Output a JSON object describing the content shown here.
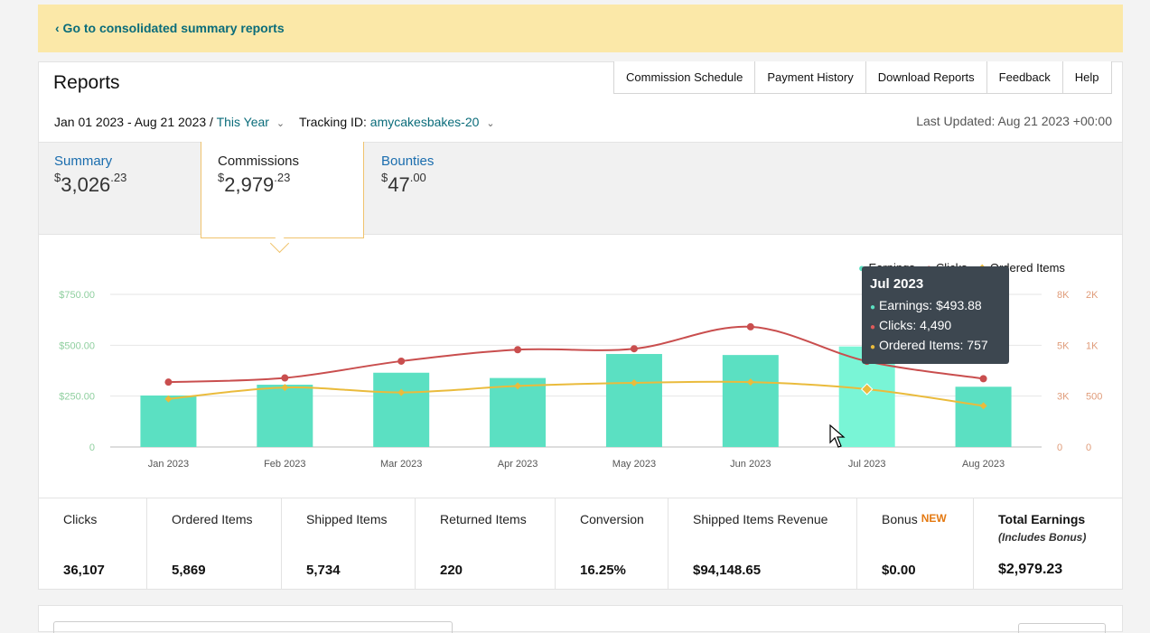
{
  "banner": {
    "link": "‹ Go to consolidated summary reports"
  },
  "header": {
    "title": "Reports",
    "tabs": [
      "Commission Schedule",
      "Payment History",
      "Download Reports",
      "Feedback",
      "Help"
    ],
    "date_range": "Jan 01 2023 - Aug 21 2023",
    "period": "This Year",
    "tracking_label": "Tracking ID:",
    "tracking_id": "amycakesbakes-20",
    "last_updated": "Last Updated: Aug 21 2023 +00:00"
  },
  "summary": [
    {
      "label": "Summary",
      "dollar": "$",
      "whole": "3,026",
      "cents": ".23"
    },
    {
      "label": "Commissions",
      "dollar": "$",
      "whole": "2,979",
      "cents": ".23"
    },
    {
      "label": "Bounties",
      "dollar": "$",
      "whole": "47",
      "cents": ".00"
    }
  ],
  "legend": {
    "earnings": "Earnings",
    "clicks": "Clicks",
    "ordered": "Ordered Items"
  },
  "tooltip": {
    "title": "Jul 2023",
    "earnings": "Earnings: $493.88",
    "clicks": "Clicks: 4,490",
    "ordered": "Ordered Items: 757"
  },
  "colors": {
    "earnings": "#5be0c2",
    "earnings_hover": "#79f5d6",
    "clicks": "#c94e4e",
    "ordered": "#eabb3c",
    "link": "#0a6c7a"
  },
  "chart_data": {
    "type": "bar",
    "categories": [
      "Jan 2023",
      "Feb 2023",
      "Mar 2023",
      "Apr 2023",
      "May 2023",
      "Jun 2023",
      "Jul 2023",
      "Aug 2023"
    ],
    "series": [
      {
        "name": "Earnings",
        "type": "bar",
        "axis": "left",
        "values": [
          253,
          306,
          365,
          339,
          457,
          452,
          493.88,
          296
        ]
      },
      {
        "name": "Clicks",
        "type": "line",
        "axis": "right1",
        "values": [
          3400,
          3620,
          4500,
          5100,
          5150,
          6300,
          4490,
          3580
        ]
      },
      {
        "name": "Ordered Items",
        "type": "line",
        "axis": "right2",
        "values": [
          630,
          780,
          715,
          800,
          840,
          850,
          757,
          540
        ]
      }
    ],
    "left_ticks": [
      "0",
      "$250.00",
      "$500.00",
      "$750.00"
    ],
    "left_range": [
      0,
      750
    ],
    "right1_ticks": [
      "0",
      "3K",
      "5K",
      "8K"
    ],
    "right1_range": [
      0,
      8000
    ],
    "right2_ticks": [
      "0",
      "500",
      "1K",
      "2K"
    ],
    "right2_range": [
      0,
      2000
    ]
  },
  "stats": [
    {
      "label": "Clicks",
      "value": "36,107"
    },
    {
      "label": "Ordered Items",
      "value": "5,869"
    },
    {
      "label": "Shipped Items",
      "value": "5,734"
    },
    {
      "label": "Returned Items",
      "value": "220"
    },
    {
      "label": "Conversion",
      "value": "16.25%"
    },
    {
      "label": "Shipped Items Revenue",
      "value": "$94,148.65"
    },
    {
      "label": "Bonus",
      "badge": "NEW",
      "value": "$0.00"
    },
    {
      "label": "Total Earnings",
      "note": "(Includes Bonus)",
      "value": "$2,979.23"
    }
  ]
}
